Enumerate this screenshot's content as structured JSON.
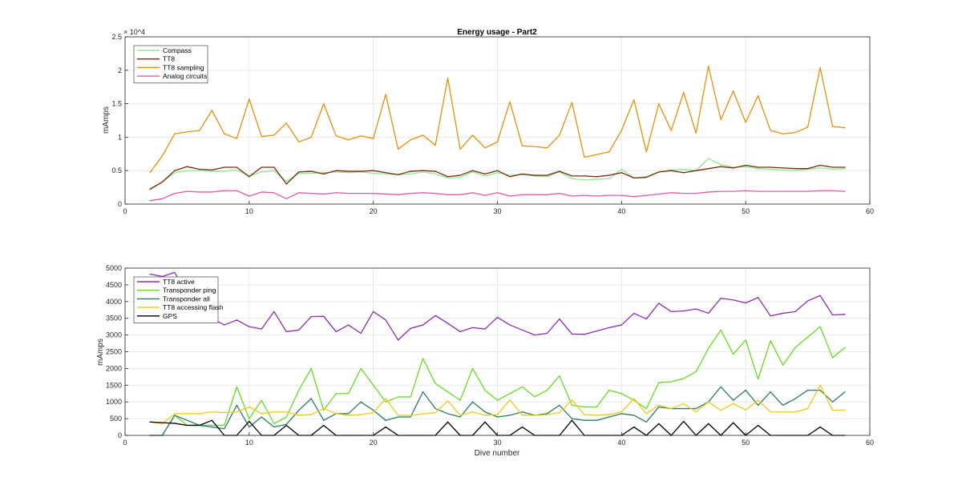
{
  "chart_data": [
    {
      "type": "line",
      "title": "Energy usage - Part2",
      "xlabel": "",
      "ylabel": "mAmps",
      "xlim": [
        0,
        60
      ],
      "ylim": [
        0,
        25000
      ],
      "xticks": [
        0,
        10,
        20,
        30,
        40,
        50,
        60
      ],
      "yticks": [
        0,
        5000,
        10000,
        15000,
        20000,
        25000
      ],
      "ytick_labels": [
        "0",
        "0.5",
        "1",
        "1.5",
        "2",
        "2.5"
      ],
      "y_multiplier": "× 10^4",
      "grid": true,
      "legend_position": "top-left",
      "x": [
        2,
        3,
        4,
        5,
        6,
        7,
        8,
        9,
        10,
        11,
        12,
        13,
        14,
        15,
        16,
        17,
        18,
        19,
        20,
        21,
        22,
        23,
        24,
        25,
        26,
        27,
        28,
        29,
        30,
        31,
        32,
        33,
        34,
        35,
        36,
        37,
        38,
        39,
        40,
        41,
        42,
        43,
        44,
        45,
        46,
        47,
        48,
        49,
        50,
        51,
        52,
        53,
        54,
        55,
        56,
        57,
        58
      ],
      "series": [
        {
          "name": "Compass",
          "color": "#90e890",
          "values": [
            2300,
            3300,
            4700,
            5000,
            5000,
            4900,
            4900,
            5100,
            4200,
            4800,
            5000,
            3400,
            4600,
            4600,
            4700,
            4800,
            4700,
            4800,
            4600,
            4500,
            4400,
            4500,
            4800,
            4500,
            3900,
            4000,
            4800,
            4200,
            4700,
            4300,
            4400,
            4200,
            4100,
            4800,
            3800,
            3600,
            3700,
            3800,
            5200,
            3900,
            4100,
            4800,
            5100,
            5200,
            5000,
            6800,
            5900,
            5500,
            5600,
            5300,
            5200,
            5100,
            5000,
            5200,
            5400,
            5200,
            5300
          ]
        },
        {
          "name": "TT8",
          "color": "#7a2a10",
          "values": [
            2200,
            3300,
            5000,
            5600,
            5200,
            5100,
            5500,
            5500,
            4100,
            5500,
            5500,
            3000,
            4800,
            4900,
            4500,
            5000,
            4900,
            4900,
            5000,
            4700,
            4400,
            4900,
            5000,
            4900,
            4100,
            4300,
            5000,
            4500,
            5000,
            4100,
            4500,
            4300,
            4300,
            4900,
            4200,
            4200,
            4100,
            4300,
            4700,
            3900,
            4000,
            4800,
            5000,
            4700,
            5000,
            5300,
            5600,
            5400,
            5800,
            5500,
            5500,
            5400,
            5300,
            5300,
            5800,
            5500,
            5500
          ]
        },
        {
          "name": "TT8 sampling",
          "color": "#e8900c",
          "values": [
            4700,
            7200,
            10500,
            10800,
            11000,
            14000,
            10500,
            9800,
            15700,
            10100,
            10300,
            12100,
            9300,
            10000,
            15000,
            10200,
            9600,
            10200,
            9800,
            16400,
            8200,
            9600,
            10300,
            8800,
            18800,
            8200,
            10300,
            8400,
            9300,
            15300,
            8700,
            8600,
            8400,
            10300,
            15200,
            7000,
            7400,
            7800,
            11000,
            15600,
            7800,
            15000,
            11000,
            16700,
            10600,
            20600,
            12600,
            16900,
            12200,
            16200,
            11000,
            10500,
            10700,
            11500,
            20400,
            11600,
            11400
          ]
        },
        {
          "name": "Analog circuits",
          "color": "#e35aa0",
          "values": [
            500,
            800,
            1600,
            1900,
            1800,
            1800,
            2000,
            2000,
            1200,
            1800,
            1700,
            800,
            1700,
            1600,
            1500,
            1700,
            1600,
            1600,
            1600,
            1500,
            1400,
            1600,
            1700,
            1600,
            1400,
            1400,
            1700,
            1300,
            1700,
            1200,
            1400,
            1400,
            1400,
            1600,
            1200,
            1300,
            1200,
            1300,
            1300,
            1100,
            1300,
            1500,
            1700,
            1600,
            1600,
            1800,
            1900,
            1900,
            2000,
            1900,
            1900,
            1900,
            1900,
            1900,
            2000,
            2000,
            1900
          ]
        }
      ]
    },
    {
      "type": "line",
      "title": "",
      "xlabel": "Dive number",
      "ylabel": "mAmps",
      "xlim": [
        0,
        60
      ],
      "ylim": [
        0,
        5000
      ],
      "xticks": [
        0,
        10,
        20,
        30,
        40,
        50,
        60
      ],
      "yticks": [
        0,
        500,
        1000,
        1500,
        2000,
        2500,
        3000,
        3500,
        4000,
        4500,
        5000
      ],
      "ytick_labels": [
        "0",
        "500",
        "1000",
        "1500",
        "2000",
        "2500",
        "3000",
        "3500",
        "4000",
        "4500",
        "5000"
      ],
      "grid": true,
      "legend_position": "top-left",
      "x": [
        2,
        3,
        4,
        5,
        6,
        7,
        8,
        9,
        10,
        11,
        12,
        13,
        14,
        15,
        16,
        17,
        18,
        19,
        20,
        21,
        22,
        23,
        24,
        25,
        26,
        27,
        28,
        29,
        30,
        31,
        32,
        33,
        34,
        35,
        36,
        37,
        38,
        39,
        40,
        41,
        42,
        43,
        44,
        45,
        46,
        47,
        48,
        49,
        50,
        51,
        52,
        53,
        54,
        55,
        56,
        57,
        58
      ],
      "series": [
        {
          "name": "TT8 active",
          "color": "#8a2fb0",
          "values": [
            4820,
            4750,
            4870,
            4200,
            3700,
            3500,
            3300,
            3450,
            3250,
            3180,
            3700,
            3100,
            3150,
            3550,
            3560,
            3100,
            3300,
            3050,
            3700,
            3450,
            2850,
            3200,
            3300,
            3580,
            3350,
            3100,
            3220,
            3180,
            3530,
            3300,
            3150,
            3000,
            3050,
            3480,
            3030,
            3020,
            3120,
            3220,
            3300,
            3650,
            3480,
            3950,
            3700,
            3720,
            3780,
            3650,
            4100,
            4050,
            3960,
            4120,
            3570,
            3650,
            3700,
            4020,
            4180,
            3600,
            3620
          ]
        },
        {
          "name": "Transponder ping",
          "color": "#66dd22",
          "values": [
            0,
            0,
            600,
            300,
            300,
            300,
            300,
            1450,
            500,
            1050,
            350,
            550,
            1350,
            2000,
            750,
            1250,
            1250,
            2000,
            1500,
            1000,
            1150,
            1150,
            2300,
            1550,
            1300,
            1050,
            2000,
            1350,
            1050,
            1250,
            1450,
            1150,
            1350,
            1780,
            900,
            850,
            850,
            1350,
            1250,
            1050,
            800,
            1580,
            1600,
            1700,
            1900,
            2600,
            3150,
            2430,
            2850,
            1680,
            2830,
            2100,
            2630,
            2940,
            3250,
            2320,
            2630
          ]
        },
        {
          "name": "Transponder all",
          "color": "#2e7a6a",
          "values": [
            0,
            0,
            600,
            450,
            300,
            250,
            200,
            900,
            250,
            550,
            250,
            330,
            750,
            1100,
            450,
            650,
            650,
            1000,
            750,
            450,
            550,
            550,
            1300,
            800,
            650,
            550,
            1000,
            700,
            550,
            600,
            700,
            600,
            650,
            900,
            500,
            450,
            450,
            550,
            650,
            600,
            400,
            850,
            800,
            800,
            800,
            1000,
            1450,
            1050,
            1350,
            900,
            1300,
            900,
            1100,
            1350,
            1350,
            1000,
            1300
          ]
        },
        {
          "name": "TT8 accessing flash",
          "color": "#f2c818",
          "values": [
            400,
            350,
            650,
            650,
            650,
            700,
            680,
            700,
            850,
            650,
            700,
            700,
            600,
            620,
            800,
            650,
            600,
            620,
            680,
            1100,
            600,
            600,
            640,
            680,
            1030,
            600,
            700,
            600,
            620,
            1060,
            600,
            600,
            620,
            680,
            1060,
            620,
            600,
            620,
            700,
            1100,
            650,
            900,
            800,
            950,
            700,
            1000,
            750,
            950,
            760,
            1050,
            700,
            700,
            700,
            800,
            1500,
            750,
            760
          ]
        },
        {
          "name": "GPS",
          "color": "#000000",
          "values": [
            400,
            380,
            360,
            300,
            300,
            450,
            0,
            0,
            420,
            0,
            0,
            300,
            0,
            0,
            300,
            0,
            0,
            0,
            0,
            250,
            0,
            0,
            0,
            0,
            400,
            0,
            0,
            400,
            0,
            0,
            250,
            0,
            0,
            0,
            450,
            0,
            0,
            0,
            0,
            250,
            0,
            350,
            0,
            420,
            0,
            350,
            0,
            380,
            0,
            300,
            0,
            0,
            0,
            0,
            250,
            0,
            0
          ]
        }
      ]
    }
  ]
}
